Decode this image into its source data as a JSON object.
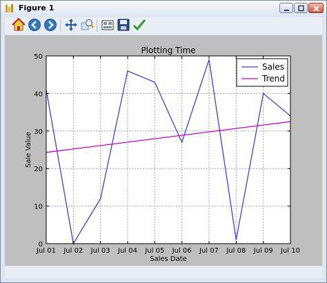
{
  "window": {
    "title": "Figure 1"
  },
  "toolbar": {
    "buttons": [
      {
        "name": "home-icon"
      },
      {
        "name": "back-icon"
      },
      {
        "name": "forward-icon"
      },
      {
        "name": "pan-icon"
      },
      {
        "name": "zoom-icon"
      },
      {
        "name": "subplots-icon"
      },
      {
        "name": "save-icon"
      },
      {
        "name": "edit-check-icon"
      }
    ]
  },
  "colors": {
    "sales": "#3f3fdf",
    "trend": "#cc00cc",
    "canvas": "#bfbfbf"
  },
  "chart_data": {
    "type": "line",
    "title": "Plotting Time",
    "xlabel": "Sales Date",
    "ylabel": "Sale Value",
    "categories": [
      "Jul 01",
      "Jul 02",
      "Jul 03",
      "Jul 04",
      "Jul 05",
      "Jul 06",
      "Jul 07",
      "Jul 08",
      "Jul 09",
      "Jul 10"
    ],
    "ylim": [
      0,
      50
    ],
    "yticks": [
      "0",
      "10",
      "20",
      "30",
      "40",
      "50"
    ],
    "grid": true,
    "legend_position": "top-right",
    "series": [
      {
        "name": "Sales",
        "x": [
          0,
          1,
          2,
          3,
          4,
          5,
          6,
          7,
          8,
          9
        ],
        "values": [
          41,
          0,
          12,
          46,
          43,
          27,
          49,
          1,
          40,
          34
        ]
      },
      {
        "name": "Trend",
        "x": [
          0,
          9
        ],
        "values": [
          24.3,
          32.5
        ]
      }
    ]
  }
}
